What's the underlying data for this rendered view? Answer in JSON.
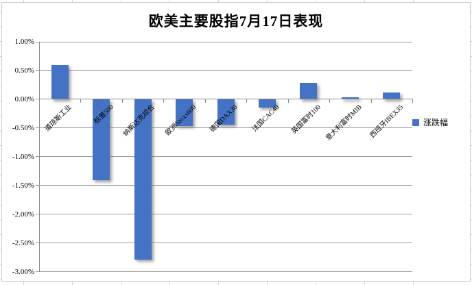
{
  "chart_data": {
    "type": "bar",
    "title": "欧美主要股指7月17日表现",
    "legend": "涨跌幅",
    "legend_position": "right",
    "categories": [
      "道琼斯工业",
      "标普500",
      "纳斯达克综合",
      "欧洲Stoxx600",
      "德国DAX30",
      "法国CAC40",
      "英国富时100",
      "意大利富时MIB",
      "西班牙IBEX35"
    ],
    "values": [
      0.59,
      -1.4,
      -2.78,
      -0.46,
      -0.44,
      -0.14,
      0.28,
      0.04,
      0.12
    ],
    "unit": "%",
    "ylim": [
      -3.0,
      1.0
    ],
    "ytick_step": 0.5,
    "ytick_labels": [
      "1.00%",
      "0.50%",
      "0.00%",
      "-0.50%",
      "-1.00%",
      "-1.50%",
      "-2.00%",
      "-2.50%",
      "-3.00%"
    ],
    "grid": true,
    "bar_color": "#4472C4",
    "gridline_color": "#9a9a9a",
    "axis_color": "#8a8a8a"
  }
}
